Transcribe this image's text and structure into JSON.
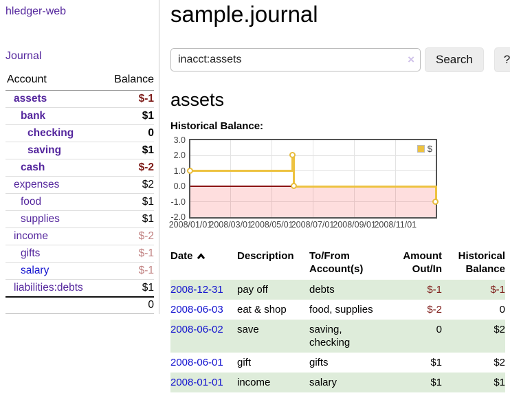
{
  "colors": {
    "link_purple": "#54269d",
    "link_blue": "#1212cf",
    "negative_dark_red": "#7d1a17",
    "negative_light_red": "#c07f7f",
    "series_gold": "#edc240",
    "row_green": "#deecda",
    "zero_line_red": "#8c1414",
    "negative_region_pink": "#fcdcdc"
  },
  "sidebar": {
    "app_title": "hledger-web",
    "journal_link": "Journal",
    "accounts_header": {
      "account": "Account",
      "balance": "Balance"
    },
    "accounts": [
      {
        "name": "assets",
        "indent": 1,
        "bold": true,
        "link": "purple",
        "balance": "$-1",
        "balance_class": "neg"
      },
      {
        "name": "bank",
        "indent": 2,
        "bold": true,
        "link": "purple",
        "balance": "$1",
        "balance_class": ""
      },
      {
        "name": "checking",
        "indent": 3,
        "bold": true,
        "link": "purple",
        "balance": "0",
        "balance_class": ""
      },
      {
        "name": "saving",
        "indent": 3,
        "bold": true,
        "link": "purple",
        "balance": "$1",
        "balance_class": ""
      },
      {
        "name": "cash",
        "indent": 2,
        "bold": true,
        "link": "purple",
        "balance": "$-2",
        "balance_class": "neg"
      },
      {
        "name": "expenses",
        "indent": 1,
        "bold": false,
        "link": "purple",
        "balance": "$2",
        "balance_class": ""
      },
      {
        "name": "food",
        "indent": 2,
        "bold": false,
        "link": "purple",
        "balance": "$1",
        "balance_class": ""
      },
      {
        "name": "supplies",
        "indent": 2,
        "bold": false,
        "link": "purple",
        "balance": "$1",
        "balance_class": ""
      },
      {
        "name": "income",
        "indent": 1,
        "bold": false,
        "link": "purple",
        "balance": "$-2",
        "balance_class": "negl"
      },
      {
        "name": "gifts",
        "indent": 2,
        "bold": false,
        "link": "purple",
        "balance": "$-1",
        "balance_class": "negl"
      },
      {
        "name": "salary",
        "indent": 2,
        "bold": false,
        "link": "blue",
        "balance": "$-1",
        "balance_class": "negl"
      },
      {
        "name": "liabilities:debts",
        "indent": 1,
        "bold": false,
        "link": "purple",
        "balance": "$1",
        "balance_class": ""
      }
    ],
    "total": "0"
  },
  "header": {
    "title": "sample.journal"
  },
  "search": {
    "query": "inacct:assets",
    "clear_icon": "×",
    "search_label": "Search",
    "help_label": "?"
  },
  "main": {
    "account_heading": "assets",
    "chart_label": "Historical Balance:"
  },
  "chart_data": {
    "type": "line",
    "style": "step",
    "title": "Historical Balance",
    "x_start": "2008-01-01",
    "x_end": "2008-12-31",
    "ylim": [
      -2,
      3
    ],
    "yticks": [
      "3.0",
      "2.0",
      "1.0",
      "0.0",
      "-1.0",
      "-2.0"
    ],
    "xticks": [
      "2008/01/01",
      "2008/03/01",
      "2008/05/01",
      "2008/07/01",
      "2008/09/01",
      "2008/11/01"
    ],
    "grid": true,
    "negative_region_shaded": true,
    "legend_position": "top-right",
    "series": [
      {
        "name": "$",
        "color": "#edc240",
        "points": [
          [
            "2008-01-01",
            1
          ],
          [
            "2008-06-01",
            2
          ],
          [
            "2008-06-03",
            0
          ],
          [
            "2008-12-31",
            -1
          ]
        ]
      }
    ]
  },
  "register": {
    "headers": [
      {
        "line1": "Date",
        "line2": ""
      },
      {
        "line1": "Description",
        "line2": ""
      },
      {
        "line1": "To/From",
        "line2": "Account(s)"
      },
      {
        "line1": "Amount",
        "line2": "Out/In"
      },
      {
        "line1": "Historical",
        "line2": "Balance"
      }
    ],
    "rows": [
      {
        "date": "2008-12-31",
        "description": "pay off",
        "accounts": "debts",
        "amount": "$-1",
        "amount_negative": true,
        "balance": "$-1",
        "balance_negative": true
      },
      {
        "date": "2008-06-03",
        "description": "eat & shop",
        "accounts": "food, supplies",
        "amount": "$-2",
        "amount_negative": true,
        "balance": "0",
        "balance_negative": false
      },
      {
        "date": "2008-06-02",
        "description": "save",
        "accounts": "saving, checking",
        "amount": "0",
        "amount_negative": false,
        "balance": "$2",
        "balance_negative": false
      },
      {
        "date": "2008-06-01",
        "description": "gift",
        "accounts": "gifts",
        "amount": "$1",
        "amount_negative": false,
        "balance": "$2",
        "balance_negative": false
      },
      {
        "date": "2008-01-01",
        "description": "income",
        "accounts": "salary",
        "amount": "$1",
        "amount_negative": false,
        "balance": "$1",
        "balance_negative": false
      }
    ]
  }
}
